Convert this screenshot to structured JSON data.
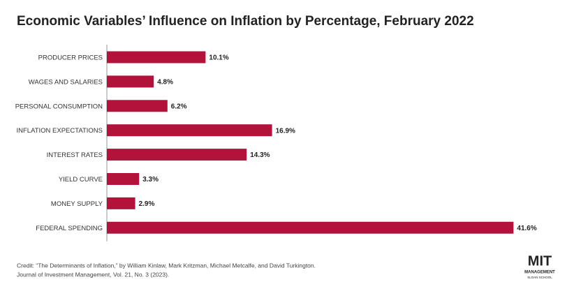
{
  "chart_data": {
    "type": "bar",
    "orientation": "horizontal",
    "title": "Economic Variables’ Influence on Inflation by Percentage, February 2022",
    "categories": [
      "PRODUCER PRICES",
      "WAGES AND SALARIES",
      "PERSONAL CONSUMPTION",
      "INFLATION EXPECTATIONS",
      "INTEREST RATES",
      "YIELD CURVE",
      "MONEY SUPPLY",
      "FEDERAL SPENDING"
    ],
    "values": [
      10.1,
      4.8,
      6.2,
      16.9,
      14.3,
      3.3,
      2.9,
      41.6
    ],
    "value_labels": [
      "10.1%",
      "4.8%",
      "6.2%",
      "16.9%",
      "14.3%",
      "3.3%",
      "2.9%",
      "41.6%"
    ],
    "color": "#b3123b"
  },
  "credit": [
    "Credit: “The Determinants of Inflation,” by William Kinlaw, Mark Kritzman, Michael Metcalfe, and David Turkington.",
    "Journal of Investment Management, Vol. 21, No. 3 (2023)."
  ],
  "logo": {
    "name": "MIT",
    "line1": "MANAGEMENT",
    "line2": "SLOAN SCHOOL"
  }
}
